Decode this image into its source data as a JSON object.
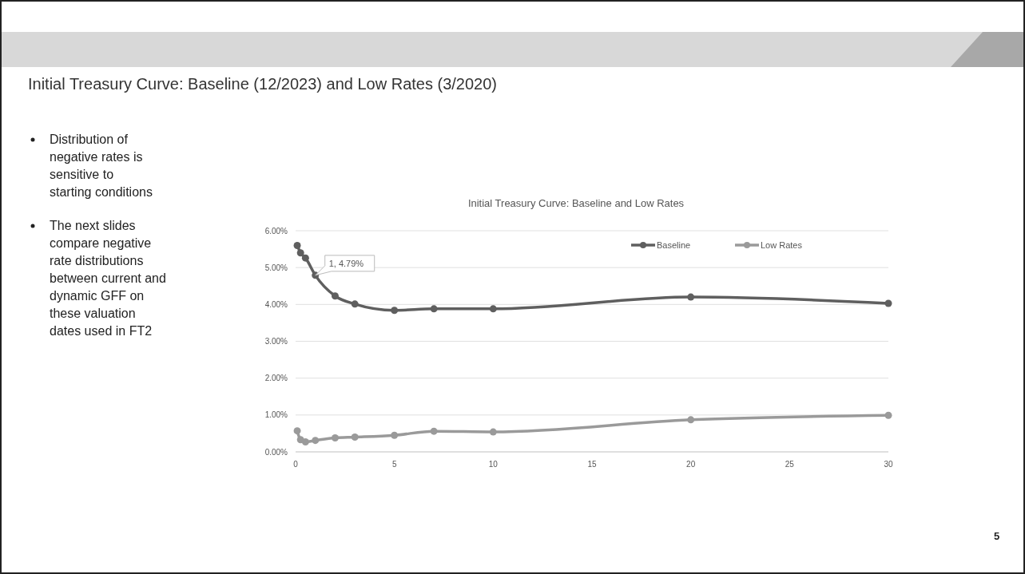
{
  "chart_data": {
    "type": "line",
    "title": "Initial Treasury Curve: Baseline and Low Rates",
    "subtitle": "Initial Treasury Curve: Baseline (12/2023) and Low Rates (3/2020)",
    "x": [
      0.083,
      0.25,
      0.5,
      1,
      2,
      3,
      5,
      7,
      10,
      20,
      30
    ],
    "series": [
      {
        "name": "Baseline",
        "color": "#5f5f5f",
        "values": [
          5.6,
          5.4,
          5.26,
          4.79,
          4.23,
          4.01,
          3.84,
          3.88,
          3.88,
          4.2,
          4.03
        ]
      },
      {
        "name": "Low Rates",
        "color": "#9a9a9a",
        "values": [
          0.57,
          0.33,
          0.27,
          0.31,
          0.38,
          0.4,
          0.45,
          0.56,
          0.54,
          0.87,
          0.99
        ]
      }
    ],
    "xlim": [
      0,
      30
    ],
    "xticks": [
      0,
      5,
      10,
      15,
      20,
      25,
      30
    ],
    "ylim": [
      0,
      6
    ],
    "yticks": [
      {
        "value": 0,
        "label": "0.00%"
      },
      {
        "value": 1,
        "label": "1.00%"
      },
      {
        "value": 2,
        "label": "2.00%"
      },
      {
        "value": 3,
        "label": "3.00%"
      },
      {
        "value": 4,
        "label": "4.00%"
      },
      {
        "value": 5,
        "label": "5.00%"
      },
      {
        "value": 6,
        "label": "6.00%"
      }
    ],
    "grid": "y",
    "legend": "top right",
    "marker": "circle",
    "line_style": "solid",
    "annotations": [
      {
        "text": "1, 4.79%",
        "x": 1,
        "y": 4.79
      },
      "Distribution of negative rates is sensitive to starting conditions",
      "The next slides compare negative rate distributions between current and dynamic GFF on these valuation dates used in FT2",
      "5"
    ]
  }
}
